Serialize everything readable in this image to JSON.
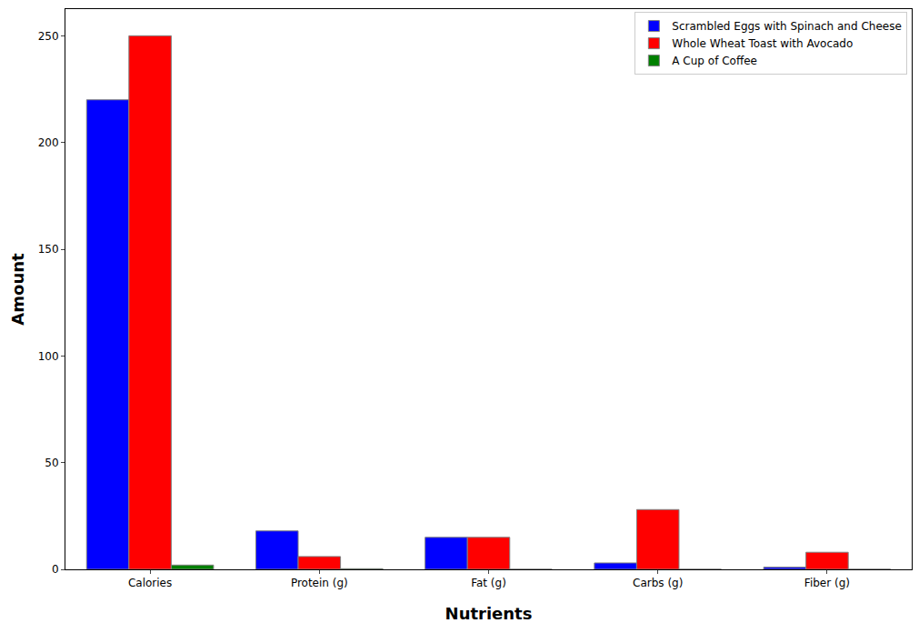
{
  "chart_data": {
    "type": "bar",
    "x_label": "Nutrients",
    "y_label": "Amount",
    "categories": [
      "Calories",
      "Protein (g)",
      "Fat (g)",
      "Carbs (g)",
      "Fiber (g)"
    ],
    "series": [
      {
        "name": "Scrambled Eggs with Spinach and Cheese",
        "color": "#0000ff",
        "values": [
          220,
          18,
          15,
          3,
          1
        ]
      },
      {
        "name": "Whole Wheat Toast with Avocado",
        "color": "#ff0000",
        "values": [
          250,
          6,
          15,
          28,
          8
        ]
      },
      {
        "name": "A Cup of Coffee",
        "color": "#008000",
        "values": [
          2,
          0.3,
          0,
          0,
          0
        ]
      }
    ],
    "ylim": [
      0,
      262.5
    ],
    "yticks": [
      0,
      50,
      100,
      150,
      200,
      250
    ],
    "grid": false,
    "legend": "upper right"
  }
}
